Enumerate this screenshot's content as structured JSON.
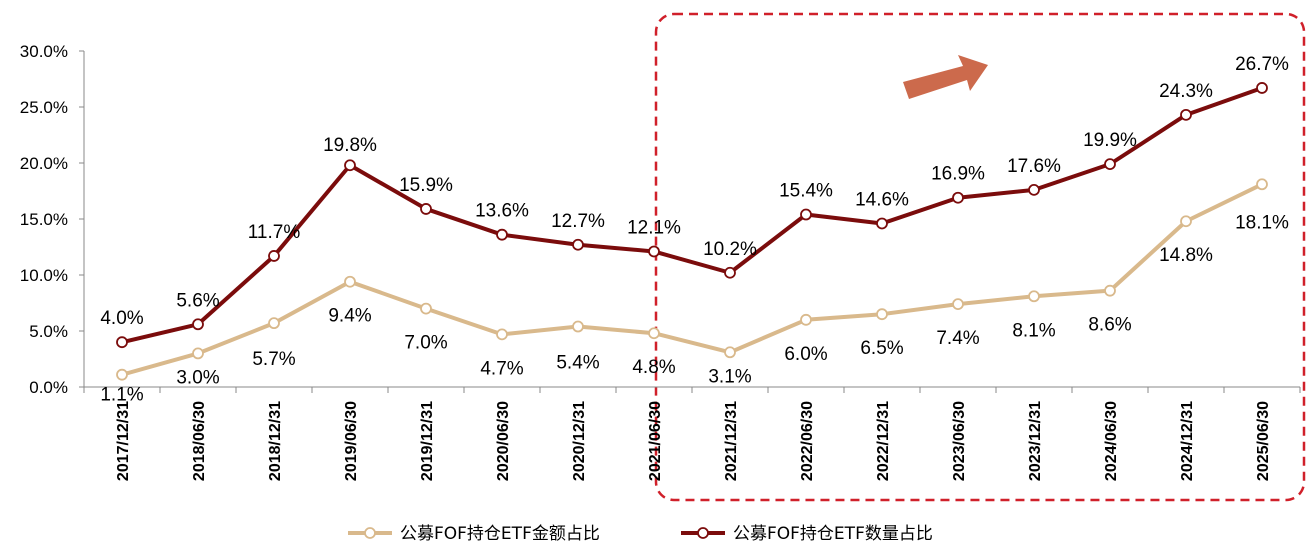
{
  "chart_data": {
    "type": "line",
    "categories": [
      "2017/12/31",
      "2018/06/30",
      "2018/12/31",
      "2019/06/30",
      "2019/12/31",
      "2020/06/30",
      "2020/12/31",
      "2021/06/30",
      "2021/12/31",
      "2022/06/30",
      "2022/12/31",
      "2023/06/30",
      "2023/12/31",
      "2024/06/30",
      "2024/12/31",
      "2025/06/30"
    ],
    "series": [
      {
        "name": "公募FOF持仓ETF金额占比",
        "color": "#D9B98C",
        "values": [
          1.1,
          3.0,
          5.7,
          9.4,
          7.0,
          4.7,
          5.4,
          4.8,
          3.1,
          6.0,
          6.5,
          7.4,
          8.1,
          8.6,
          14.8,
          18.1
        ],
        "labels": [
          "1.1%",
          "3.0%",
          "5.7%",
          "9.4%",
          "7.0%",
          "4.7%",
          "5.4%",
          "4.8%",
          "3.1%",
          "6.0%",
          "6.5%",
          "7.4%",
          "8.1%",
          "8.6%",
          "14.8%",
          "18.1%"
        ]
      },
      {
        "name": "公募FOF持仓ETF数量占比",
        "color": "#7B0C0C",
        "values": [
          4.0,
          5.6,
          11.7,
          19.8,
          15.9,
          13.6,
          12.7,
          12.1,
          10.2,
          15.4,
          14.6,
          16.9,
          17.6,
          19.9,
          24.3,
          26.7
        ],
        "labels": [
          "4.0%",
          "5.6%",
          "11.7%",
          "19.8%",
          "15.9%",
          "13.6%",
          "12.7%",
          "12.1%",
          "10.2%",
          "15.4%",
          "14.6%",
          "16.9%",
          "17.6%",
          "19.9%",
          "24.3%",
          "26.7%"
        ]
      }
    ],
    "yticks": [
      "0.0%",
      "5.0%",
      "10.0%",
      "15.0%",
      "20.0%",
      "25.0%",
      "30.0%"
    ],
    "ylim": [
      0,
      30
    ],
    "grid": false,
    "legend_position": "bottom",
    "annotations": {
      "highlight_box": {
        "from_category": "2021/12/31",
        "to_category": "2025/06/30",
        "style": "red dashed rounded rectangle"
      },
      "arrow": {
        "direction": "up-right",
        "color": "#CC6A4C"
      }
    },
    "box_color": "#D0202A"
  }
}
